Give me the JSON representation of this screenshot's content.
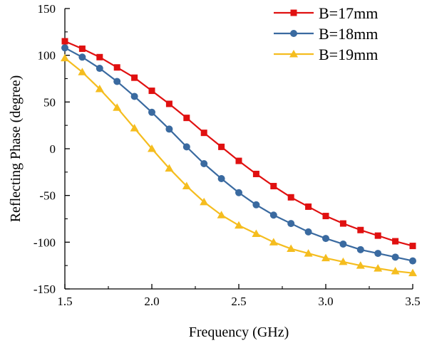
{
  "chart_data": {
    "type": "line",
    "title": "",
    "xlabel": "Frequency (GHz)",
    "ylabel": "Reflecting Phase (degree)",
    "xlim": [
      1.5,
      3.5
    ],
    "ylim": [
      -150,
      150
    ],
    "x_ticks": [
      "1.5",
      "2.0",
      "2.5",
      "3.0",
      "3.5"
    ],
    "y_ticks": [
      "-150",
      "-100",
      "-50",
      "0",
      "50",
      "100",
      "150"
    ],
    "grid": false,
    "legend_position": "top-right",
    "x": [
      1.5,
      1.6,
      1.7,
      1.8,
      1.9,
      2.0,
      2.1,
      2.2,
      2.3,
      2.4,
      2.5,
      2.6,
      2.7,
      2.8,
      2.9,
      3.0,
      3.1,
      3.2,
      3.3,
      3.4,
      3.5
    ],
    "series": [
      {
        "name": "B=17mm",
        "color": "#e01010",
        "marker": "square",
        "values": [
          115,
          107,
          98,
          87,
          76,
          62,
          48,
          33,
          17,
          2,
          -13,
          -27,
          -40,
          -52,
          -62,
          -72,
          -80,
          -87,
          -93,
          -99,
          -104
        ]
      },
      {
        "name": "B=18mm",
        "color": "#3a6aa0",
        "marker": "circle",
        "values": [
          108,
          98,
          86,
          72,
          56,
          39,
          21,
          2,
          -16,
          -32,
          -47,
          -60,
          -71,
          -80,
          -89,
          -96,
          -102,
          -108,
          -112,
          -116,
          -120
        ]
      },
      {
        "name": "B=19mm",
        "color": "#f5bd1f",
        "marker": "triangle",
        "values": [
          97,
          82,
          64,
          44,
          22,
          0,
          -21,
          -40,
          -57,
          -71,
          -82,
          -91,
          -100,
          -107,
          -112,
          -117,
          -121,
          -125,
          -128,
          -131,
          -133
        ]
      }
    ]
  }
}
